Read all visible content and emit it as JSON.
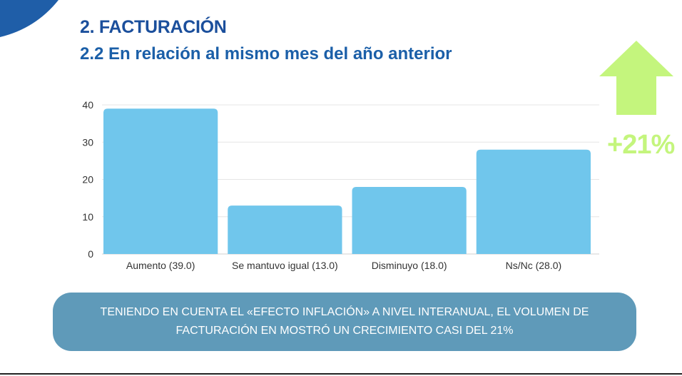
{
  "header": {
    "title": "2. FACTURACIÓN",
    "subtitle": "2.2 En relación al mismo mes del año anterior"
  },
  "indicator": {
    "growth_label": "+21%",
    "arrow_color": "#c4f57d"
  },
  "note": {
    "text": "TENIENDO EN CUENTA EL «EFECTO INFLACIÓN» A NIVEL INTERANUAL, EL VOLUMEN DE FACTURACIÓN EN MOSTRÓ UN CRECIMIENTO CASI DEL 21%"
  },
  "colors": {
    "bar": "#70c6ec",
    "title": "#1b4f9c",
    "note_bg": "#5f9ab9",
    "corner": "#1f5ea8"
  },
  "chart_data": {
    "type": "bar",
    "categories": [
      "Aumento (39.0)",
      "Se mantuvo igual (13.0)",
      "Disminuyo (18.0)",
      "Ns/Nc (28.0)"
    ],
    "values": [
      39,
      13,
      18,
      28
    ],
    "ylim": [
      0,
      40
    ],
    "yticks": [
      "0",
      "10",
      "20",
      "30",
      "40"
    ],
    "title": "",
    "xlabel": "",
    "ylabel": "",
    "grid": true
  }
}
